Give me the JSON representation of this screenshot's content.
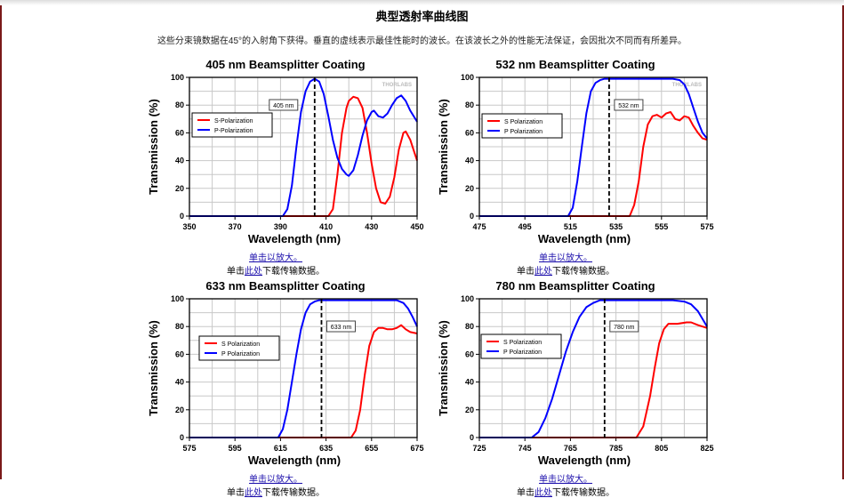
{
  "page": {
    "title": "典型透射率曲线图",
    "description": "这些分束镜数据在45°的入射角下获得。垂直的虚线表示最佳性能时的波长。在该波长之外的性能无法保证，会因批次不同而有所差异。",
    "enlarge_link": "单击以放大。",
    "download_prefix": "单击",
    "download_link": "此处",
    "download_suffix": "下载传输数据。"
  },
  "colors": {
    "s": "#ff0000",
    "p": "#0000ff"
  },
  "chart_data": [
    {
      "type": "line",
      "title": "405 nm Beamsplitter Coating",
      "xlabel": "Wavelength (nm)",
      "ylabel": "Transmission (%)",
      "xlim": [
        350,
        450
      ],
      "ylim": [
        0,
        100
      ],
      "xticks": [
        350,
        370,
        390,
        410,
        430,
        450
      ],
      "yticks": [
        0,
        20,
        40,
        60,
        80,
        100
      ],
      "grid": true,
      "marker_nm": 405,
      "marker_label": "405 nm",
      "watermark": "THORLABS",
      "series": [
        {
          "name": "S-Polarization",
          "color": "#ff0000",
          "x": [
            350,
            411,
            413,
            415,
            417,
            419,
            420,
            422,
            424,
            426,
            428,
            430,
            432,
            434,
            436,
            438,
            440,
            442,
            444,
            445,
            447,
            449,
            450
          ],
          "y": [
            0,
            0,
            5,
            30,
            60,
            78,
            83,
            86,
            85,
            78,
            60,
            38,
            20,
            10,
            9,
            14,
            28,
            48,
            60,
            61,
            55,
            45,
            40
          ]
        },
        {
          "name": "P-Polarization",
          "color": "#0000ff",
          "x": [
            350,
            391,
            393,
            395,
            397,
            399,
            401,
            403,
            405,
            407,
            409,
            411,
            413,
            415,
            417,
            419,
            420,
            422,
            424,
            426,
            428,
            430,
            431,
            433,
            435,
            437,
            439,
            441,
            443,
            445,
            447,
            450
          ],
          "y": [
            0,
            0,
            5,
            22,
            50,
            75,
            90,
            97,
            99,
            97,
            88,
            72,
            55,
            42,
            34,
            30,
            29,
            33,
            44,
            58,
            69,
            75,
            76,
            72,
            71,
            74,
            80,
            85,
            87,
            83,
            76,
            68
          ]
        }
      ],
      "legend": "upper-left"
    },
    {
      "type": "line",
      "title": "532 nm Beamsplitter Coating",
      "xlabel": "Wavelength (nm)",
      "ylabel": "Transmission (%)",
      "xlim": [
        475,
        575
      ],
      "ylim": [
        0,
        100
      ],
      "xticks": [
        475,
        495,
        515,
        535,
        555,
        575
      ],
      "yticks": [
        0,
        20,
        40,
        60,
        80,
        100
      ],
      "grid": true,
      "marker_nm": 532,
      "marker_label": "532 nm",
      "watermark": "THORLABS",
      "series": [
        {
          "name": "S Polarization",
          "color": "#ff0000",
          "x": [
            475,
            541,
            543,
            545,
            547,
            549,
            551,
            553,
            555,
            557,
            559,
            561,
            563,
            565,
            567,
            569,
            571,
            573,
            575
          ],
          "y": [
            0,
            0,
            8,
            25,
            50,
            66,
            72,
            73,
            71,
            74,
            75,
            70,
            69,
            72,
            71,
            65,
            60,
            56,
            55
          ]
        },
        {
          "name": "P Polarization",
          "color": "#0000ff",
          "x": [
            475,
            514,
            516,
            518,
            520,
            522,
            524,
            526,
            528,
            530,
            540,
            560,
            563,
            565,
            567,
            569,
            571,
            573,
            575
          ],
          "y": [
            0,
            0,
            6,
            25,
            50,
            74,
            90,
            96,
            98,
            99,
            99,
            99,
            98,
            95,
            88,
            78,
            68,
            60,
            56
          ]
        }
      ],
      "legend": "upper-left"
    },
    {
      "type": "line",
      "title": "633 nm Beamsplitter Coating",
      "xlabel": "Wavelength (nm)",
      "ylabel": "Transmission (%)",
      "xlim": [
        575,
        675
      ],
      "ylim": [
        0,
        100
      ],
      "xticks": [
        575,
        595,
        615,
        635,
        655,
        675
      ],
      "yticks": [
        0,
        20,
        40,
        60,
        80,
        100
      ],
      "grid": true,
      "marker_nm": 633,
      "marker_label": "633 nm",
      "series": [
        {
          "name": "S Polarization",
          "color": "#ff0000",
          "x": [
            575,
            646,
            648,
            650,
            652,
            654,
            656,
            658,
            660,
            662,
            664,
            666,
            668,
            670,
            672,
            675
          ],
          "y": [
            0,
            0,
            5,
            20,
            45,
            66,
            76,
            79,
            79,
            78,
            78,
            79,
            81,
            78,
            76,
            75
          ]
        },
        {
          "name": "P Polarization",
          "color": "#0000ff",
          "x": [
            575,
            614,
            616,
            618,
            620,
            622,
            624,
            626,
            628,
            630,
            632,
            660,
            666,
            669,
            671,
            673,
            675
          ],
          "y": [
            0,
            0,
            6,
            20,
            40,
            60,
            78,
            90,
            96,
            98,
            99,
            99,
            99,
            97,
            93,
            87,
            80
          ]
        }
      ],
      "legend": "upper-left"
    },
    {
      "type": "line",
      "title": "780 nm Beamsplitter Coating",
      "xlabel": "Wavelength (nm)",
      "ylabel": "Transmission (%)",
      "xlim": [
        725,
        825
      ],
      "ylim": [
        0,
        100
      ],
      "xticks": [
        725,
        745,
        765,
        785,
        805,
        825
      ],
      "yticks": [
        0,
        20,
        40,
        60,
        80,
        100
      ],
      "grid": true,
      "marker_nm": 780,
      "marker_label": "780 nm",
      "series": [
        {
          "name": "S Polarization",
          "color": "#ff0000",
          "x": [
            725,
            794,
            797,
            800,
            802,
            804,
            806,
            808,
            812,
            816,
            818,
            821,
            825
          ],
          "y": [
            0,
            0,
            8,
            30,
            50,
            68,
            78,
            82,
            82,
            83,
            83,
            81,
            79
          ]
        },
        {
          "name": "P Polarization",
          "color": "#0000ff",
          "x": [
            725,
            748,
            751,
            754,
            757,
            760,
            763,
            766,
            769,
            772,
            775,
            778,
            810,
            815,
            818,
            821,
            825
          ],
          "y": [
            0,
            0,
            4,
            14,
            28,
            45,
            62,
            76,
            87,
            94,
            97,
            99,
            99,
            98,
            96,
            91,
            80
          ]
        }
      ],
      "legend": "upper-left"
    }
  ]
}
